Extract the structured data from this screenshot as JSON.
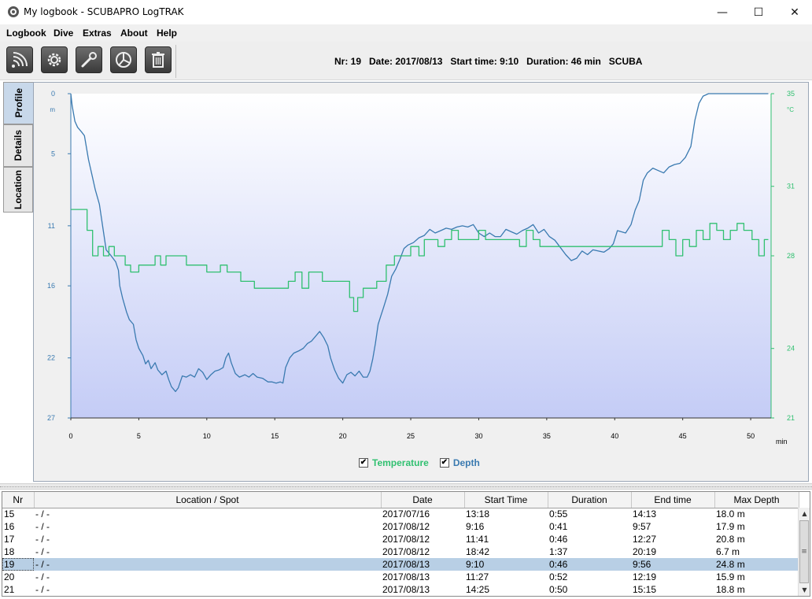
{
  "window": {
    "title": "My logbook - SCUBAPRO LogTRAK",
    "minimize": "—",
    "maximize": "☐",
    "close": "✕"
  },
  "menu": [
    "Logbook",
    "Dive",
    "Extras",
    "About",
    "Help"
  ],
  "toolbar": {
    "buttons": [
      "download-icon",
      "settings-gear-icon",
      "wrench-icon",
      "statistics-pie-icon",
      "trash-icon"
    ],
    "dive_info": "Nr: 19   Date: 2017/08/13   Start time: 9:10   Duration: 46 min   SCUBA"
  },
  "tabs": [
    "Profile",
    "Details",
    "Location"
  ],
  "colors": {
    "depth": "#3a7ab0",
    "temperature": "#30c070",
    "plot_top": "#ffffff",
    "plot_bottom": "#c4ccf6"
  },
  "chart_data": {
    "type": "line",
    "x_label": "min",
    "x_ticks": [
      0,
      5,
      10,
      15,
      20,
      25,
      30,
      35,
      40,
      45,
      50
    ],
    "xlim": [
      0,
      51.5
    ],
    "depth_axis": {
      "unit": "m",
      "ticks": [
        0,
        5,
        11,
        16,
        22,
        27
      ],
      "range": [
        0,
        27
      ],
      "inverted": true
    },
    "temp_axis": {
      "unit": "°C",
      "ticks": [
        35,
        31,
        28,
        24,
        21
      ],
      "range": [
        21,
        35
      ]
    },
    "legend": [
      {
        "label": "Temperature",
        "checked": true,
        "color": "#30c070"
      },
      {
        "label": "Depth",
        "checked": true,
        "color": "#3a7ab0"
      }
    ],
    "series": [
      {
        "name": "Depth",
        "axis": "depth",
        "points": [
          [
            0,
            0
          ],
          [
            0.1,
            1
          ],
          [
            0.3,
            2.3
          ],
          [
            0.5,
            2.8
          ],
          [
            0.8,
            3.2
          ],
          [
            1,
            3.5
          ],
          [
            1.3,
            5.5
          ],
          [
            1.6,
            7
          ],
          [
            1.8,
            8
          ],
          [
            2.1,
            9.2
          ],
          [
            2.4,
            11.5
          ],
          [
            2.6,
            13
          ],
          [
            2.9,
            13.4
          ],
          [
            3.3,
            14
          ],
          [
            3.5,
            14.7
          ],
          [
            3.6,
            16
          ],
          [
            3.8,
            17
          ],
          [
            4.1,
            18.2
          ],
          [
            4.3,
            18.8
          ],
          [
            4.6,
            19.2
          ],
          [
            4.8,
            20.5
          ],
          [
            5,
            21.2
          ],
          [
            5.3,
            21.8
          ],
          [
            5.5,
            22.5
          ],
          [
            5.7,
            22.2
          ],
          [
            5.9,
            22.9
          ],
          [
            6.2,
            22.4
          ],
          [
            6.4,
            23
          ],
          [
            6.7,
            23.4
          ],
          [
            7,
            23.1
          ],
          [
            7.2,
            23.8
          ],
          [
            7.4,
            24.4
          ],
          [
            7.7,
            24.8
          ],
          [
            7.9,
            24.5
          ],
          [
            8.2,
            23.5
          ],
          [
            8.5,
            23.6
          ],
          [
            8.8,
            23.4
          ],
          [
            9.1,
            23.6
          ],
          [
            9.4,
            22.9
          ],
          [
            9.7,
            23.2
          ],
          [
            10,
            23.8
          ],
          [
            10.3,
            23.4
          ],
          [
            10.6,
            23.1
          ],
          [
            10.9,
            23
          ],
          [
            11.2,
            22.8
          ],
          [
            11.4,
            22
          ],
          [
            11.6,
            21.6
          ],
          [
            11.8,
            22.4
          ],
          [
            12.1,
            23.3
          ],
          [
            12.4,
            23.6
          ],
          [
            12.8,
            23.4
          ],
          [
            13.1,
            23.6
          ],
          [
            13.4,
            23.3
          ],
          [
            13.7,
            23.6
          ],
          [
            14.1,
            23.7
          ],
          [
            14.5,
            24
          ],
          [
            14.8,
            24
          ],
          [
            15.1,
            24.1
          ],
          [
            15.4,
            24
          ],
          [
            15.6,
            24.1
          ],
          [
            15.8,
            22.8
          ],
          [
            16.1,
            22
          ],
          [
            16.4,
            21.6
          ],
          [
            16.8,
            21.4
          ],
          [
            17.1,
            21.2
          ],
          [
            17.4,
            20.8
          ],
          [
            17.7,
            20.6
          ],
          [
            18,
            20.2
          ],
          [
            18.3,
            19.8
          ],
          [
            18.6,
            20.3
          ],
          [
            18.9,
            21
          ],
          [
            19.1,
            22
          ],
          [
            19.4,
            23
          ],
          [
            19.7,
            23.7
          ],
          [
            20,
            24.1
          ],
          [
            20.3,
            23.4
          ],
          [
            20.6,
            23.2
          ],
          [
            20.9,
            23.5
          ],
          [
            21.2,
            23.1
          ],
          [
            21.5,
            23.6
          ],
          [
            21.8,
            23.6
          ],
          [
            22,
            23.1
          ],
          [
            22.2,
            22.1
          ],
          [
            22.4,
            20.8
          ],
          [
            22.6,
            19.2
          ],
          [
            22.8,
            18.5
          ],
          [
            23,
            17.8
          ],
          [
            23.3,
            16.7
          ],
          [
            23.6,
            15.2
          ],
          [
            23.9,
            14.6
          ],
          [
            24.2,
            13.8
          ],
          [
            24.5,
            12.9
          ],
          [
            24.8,
            12.6
          ],
          [
            25.2,
            12.4
          ],
          [
            25.6,
            12
          ],
          [
            26,
            11.8
          ],
          [
            26.4,
            11.3
          ],
          [
            26.8,
            11.6
          ],
          [
            27.2,
            11.4
          ],
          [
            27.6,
            11.2
          ],
          [
            28,
            11.3
          ],
          [
            28.4,
            11.1
          ],
          [
            28.8,
            11
          ],
          [
            29.2,
            11.1
          ],
          [
            29.6,
            10.9
          ],
          [
            30,
            11.6
          ],
          [
            30.4,
            11.9
          ],
          [
            30.8,
            11.6
          ],
          [
            31.2,
            11.9
          ],
          [
            31.6,
            11.9
          ],
          [
            32,
            11.3
          ],
          [
            32.4,
            11.5
          ],
          [
            32.8,
            11.7
          ],
          [
            33.2,
            11.4
          ],
          [
            33.6,
            11.2
          ],
          [
            34,
            10.9
          ],
          [
            34.4,
            11.6
          ],
          [
            34.8,
            11.3
          ],
          [
            35.2,
            11.9
          ],
          [
            35.6,
            12.2
          ],
          [
            36,
            12.8
          ],
          [
            36.4,
            13.4
          ],
          [
            36.8,
            13.9
          ],
          [
            37.2,
            13.7
          ],
          [
            37.6,
            13.1
          ],
          [
            38,
            13.4
          ],
          [
            38.4,
            13
          ],
          [
            38.8,
            13.1
          ],
          [
            39.2,
            13.2
          ],
          [
            39.6,
            12.9
          ],
          [
            39.9,
            12.5
          ],
          [
            40.2,
            11.4
          ],
          [
            40.5,
            11.5
          ],
          [
            40.8,
            11.6
          ],
          [
            41.2,
            10.9
          ],
          [
            41.5,
            9.7
          ],
          [
            41.8,
            8.9
          ],
          [
            42.1,
            7.2
          ],
          [
            42.4,
            6.6
          ],
          [
            42.8,
            6.2
          ],
          [
            43.2,
            6.4
          ],
          [
            43.6,
            6.6
          ],
          [
            44,
            6.1
          ],
          [
            44.4,
            5.9
          ],
          [
            44.8,
            5.8
          ],
          [
            45.2,
            5.3
          ],
          [
            45.6,
            4.4
          ],
          [
            45.9,
            2.2
          ],
          [
            46.2,
            0.8
          ],
          [
            46.5,
            0.2
          ],
          [
            46.9,
            0
          ],
          [
            48,
            0
          ],
          [
            49,
            0
          ],
          [
            50,
            0
          ],
          [
            51.3,
            0
          ]
        ],
        "color": "#3a7ab0"
      },
      {
        "name": "Temperature",
        "axis": "temp",
        "points": [
          [
            0,
            30
          ],
          [
            1.2,
            30
          ],
          [
            1.2,
            29.1
          ],
          [
            1.6,
            29.1
          ],
          [
            1.6,
            28
          ],
          [
            2,
            28
          ],
          [
            2,
            28.4
          ],
          [
            2.4,
            28.4
          ],
          [
            2.4,
            28
          ],
          [
            2.8,
            28
          ],
          [
            2.8,
            28.4
          ],
          [
            3.2,
            28.4
          ],
          [
            3.2,
            28
          ],
          [
            4,
            28
          ],
          [
            4,
            27.6
          ],
          [
            4.4,
            27.6
          ],
          [
            4.4,
            27.3
          ],
          [
            5,
            27.3
          ],
          [
            5,
            27.6
          ],
          [
            6.2,
            27.6
          ],
          [
            6.2,
            28
          ],
          [
            6.6,
            28
          ],
          [
            6.6,
            27.6
          ],
          [
            7,
            27.6
          ],
          [
            7,
            28
          ],
          [
            8.5,
            28
          ],
          [
            8.5,
            27.6
          ],
          [
            10,
            27.6
          ],
          [
            10,
            27.3
          ],
          [
            11,
            27.3
          ],
          [
            11,
            27.6
          ],
          [
            11.5,
            27.6
          ],
          [
            11.5,
            27.3
          ],
          [
            12.5,
            27.3
          ],
          [
            12.5,
            26.9
          ],
          [
            13.5,
            26.9
          ],
          [
            13.5,
            26.6
          ],
          [
            16,
            26.6
          ],
          [
            16,
            26.9
          ],
          [
            16.5,
            26.9
          ],
          [
            16.5,
            27.3
          ],
          [
            17,
            27.3
          ],
          [
            17,
            26.6
          ],
          [
            17.5,
            26.6
          ],
          [
            17.5,
            27.3
          ],
          [
            18.5,
            27.3
          ],
          [
            18.5,
            26.9
          ],
          [
            20.5,
            26.9
          ],
          [
            20.5,
            26.2
          ],
          [
            20.8,
            26.2
          ],
          [
            20.8,
            25.6
          ],
          [
            21.1,
            25.6
          ],
          [
            21.1,
            26.2
          ],
          [
            21.5,
            26.2
          ],
          [
            21.5,
            26.6
          ],
          [
            22.5,
            26.6
          ],
          [
            22.5,
            26.9
          ],
          [
            23.2,
            26.9
          ],
          [
            23.2,
            27.6
          ],
          [
            23.8,
            27.6
          ],
          [
            23.8,
            28
          ],
          [
            25,
            28
          ],
          [
            25,
            28.4
          ],
          [
            25.6,
            28.4
          ],
          [
            25.6,
            28
          ],
          [
            26,
            28
          ],
          [
            26,
            28.7
          ],
          [
            27,
            28.7
          ],
          [
            27,
            28.4
          ],
          [
            27.5,
            28.4
          ],
          [
            27.5,
            28.7
          ],
          [
            28,
            28.7
          ],
          [
            28,
            29.1
          ],
          [
            28.5,
            29.1
          ],
          [
            28.5,
            28.7
          ],
          [
            30,
            28.7
          ],
          [
            30,
            29.1
          ],
          [
            30.5,
            29.1
          ],
          [
            30.5,
            28.7
          ],
          [
            33,
            28.7
          ],
          [
            33,
            28.4
          ],
          [
            33.5,
            28.4
          ],
          [
            33.5,
            29.1
          ],
          [
            34,
            29.1
          ],
          [
            34,
            28.7
          ],
          [
            34.5,
            28.7
          ],
          [
            34.5,
            28.4
          ],
          [
            40,
            28.4
          ],
          [
            40,
            28.4
          ],
          [
            41,
            28.4
          ],
          [
            41,
            28.4
          ],
          [
            43.5,
            28.4
          ],
          [
            43.5,
            29.1
          ],
          [
            44,
            29.1
          ],
          [
            44,
            28.7
          ],
          [
            44.5,
            28.7
          ],
          [
            44.5,
            28
          ],
          [
            45,
            28
          ],
          [
            45,
            28.7
          ],
          [
            45.5,
            28.7
          ],
          [
            45.5,
            28.4
          ],
          [
            46,
            28.4
          ],
          [
            46,
            29.1
          ],
          [
            46.5,
            29.1
          ],
          [
            46.5,
            28.7
          ],
          [
            47,
            28.7
          ],
          [
            47,
            29.4
          ],
          [
            47.5,
            29.4
          ],
          [
            47.5,
            29.1
          ],
          [
            48,
            29.1
          ],
          [
            48,
            28.7
          ],
          [
            48.5,
            28.7
          ],
          [
            48.5,
            29.1
          ],
          [
            49,
            29.1
          ],
          [
            49,
            29.4
          ],
          [
            49.5,
            29.4
          ],
          [
            49.5,
            29.1
          ],
          [
            50.1,
            29.1
          ],
          [
            50.1,
            28.7
          ],
          [
            50.6,
            28.7
          ],
          [
            50.6,
            28
          ],
          [
            51,
            28
          ],
          [
            51,
            28.7
          ],
          [
            51.3,
            28.7
          ]
        ],
        "color": "#30c070"
      }
    ]
  },
  "table": {
    "columns": [
      "Nr",
      "Location / Spot",
      "Date",
      "Start Time",
      "Duration",
      "End time",
      "Max Depth"
    ],
    "rows": [
      [
        "15",
        "- / -",
        "2017/07/16",
        "13:18",
        "0:55",
        "14:13",
        "18.0 m"
      ],
      [
        "16",
        "- / -",
        "2017/08/12",
        "9:16",
        "0:41",
        "9:57",
        "17.9 m"
      ],
      [
        "17",
        "- / -",
        "2017/08/12",
        "11:41",
        "0:46",
        "12:27",
        "20.8 m"
      ],
      [
        "18",
        "- / -",
        "2017/08/12",
        "18:42",
        "1:37",
        "20:19",
        "6.7 m"
      ],
      [
        "19",
        "- / -",
        "2017/08/13",
        "9:10",
        "0:46",
        "9:56",
        "24.8 m"
      ],
      [
        "20",
        "- / -",
        "2017/08/13",
        "11:27",
        "0:52",
        "12:19",
        "15.9 m"
      ],
      [
        "21",
        "- / -",
        "2017/08/13",
        "14:25",
        "0:50",
        "15:15",
        "18.8 m"
      ]
    ],
    "selected_row": 4
  },
  "scrollbar": {
    "up": "▲",
    "down": "▼",
    "grip": "≡"
  }
}
